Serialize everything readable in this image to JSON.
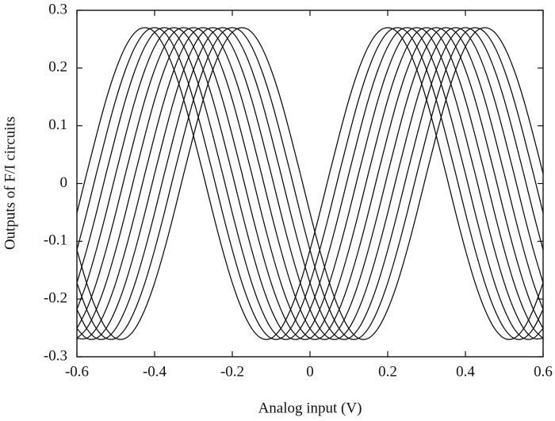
{
  "chart_data": {
    "type": "line",
    "xlabel": "Analog input (V)",
    "ylabel": "Outputs of F/I circuits",
    "color": "#111111",
    "xlim": [
      -0.6,
      0.6
    ],
    "ylim": [
      -0.3,
      0.3
    ],
    "xticks": [
      -0.6,
      -0.4,
      -0.2,
      0,
      0.2,
      0.4,
      0.6
    ],
    "yticks": [
      -0.3,
      -0.2,
      -0.1,
      0,
      0.1,
      0.2,
      0.3
    ],
    "x": [
      -0.6,
      -0.575,
      -0.55,
      -0.525,
      -0.5,
      -0.475,
      -0.45,
      -0.425,
      -0.4,
      -0.375,
      -0.35,
      -0.325,
      -0.3,
      -0.275,
      -0.25,
      -0.225,
      -0.2,
      -0.175,
      -0.15,
      -0.125,
      -0.1,
      -0.075,
      -0.05,
      -0.025,
      0,
      0.025,
      0.05,
      0.075,
      0.1,
      0.125,
      0.15,
      0.175,
      0.2,
      0.225,
      0.25,
      0.275,
      0.3,
      0.325,
      0.35,
      0.375,
      0.4,
      0.425,
      0.45,
      0.475,
      0.5,
      0.525,
      0.55,
      0.575,
      0.6
    ],
    "series": [
      {
        "values": [
          -0.051,
          0.017,
          0.083,
          0.145,
          0.197,
          0.237,
          0.262,
          0.27,
          0.262,
          0.237,
          0.197,
          0.145,
          0.083,
          0.017,
          -0.051,
          -0.115,
          -0.172,
          -0.218,
          -0.251,
          -0.268,
          -0.268,
          -0.251,
          -0.218,
          -0.172,
          -0.115,
          -0.051,
          0.017,
          0.083,
          0.145,
          0.197,
          0.237,
          0.262,
          0.27,
          0.262,
          0.237,
          0.197,
          0.145,
          0.083,
          0.017,
          -0.051,
          -0.115,
          -0.172,
          -0.218,
          -0.251,
          -0.268,
          -0.268,
          -0.251,
          -0.218,
          -0.172
        ]
      },
      {
        "values": [
          -0.115,
          -0.051,
          0.017,
          0.083,
          0.145,
          0.197,
          0.237,
          0.262,
          0.27,
          0.262,
          0.237,
          0.197,
          0.145,
          0.083,
          0.017,
          -0.051,
          -0.115,
          -0.172,
          -0.218,
          -0.251,
          -0.268,
          -0.268,
          -0.251,
          -0.218,
          -0.172,
          -0.115,
          -0.051,
          0.017,
          0.083,
          0.145,
          0.197,
          0.237,
          0.262,
          0.27,
          0.262,
          0.237,
          0.197,
          0.145,
          0.083,
          0.017,
          -0.051,
          -0.115,
          -0.172,
          -0.218,
          -0.251,
          -0.268,
          -0.268,
          -0.251,
          -0.218
        ]
      },
      {
        "values": [
          -0.172,
          -0.115,
          -0.051,
          0.017,
          0.083,
          0.145,
          0.197,
          0.237,
          0.262,
          0.27,
          0.262,
          0.237,
          0.197,
          0.145,
          0.083,
          0.017,
          -0.051,
          -0.115,
          -0.172,
          -0.218,
          -0.251,
          -0.268,
          -0.268,
          -0.251,
          -0.218,
          -0.172,
          -0.115,
          -0.051,
          0.017,
          0.083,
          0.145,
          0.197,
          0.237,
          0.262,
          0.27,
          0.262,
          0.237,
          0.197,
          0.145,
          0.083,
          0.017,
          -0.051,
          -0.115,
          -0.172,
          -0.218,
          -0.251,
          -0.268,
          -0.268,
          -0.251
        ]
      },
      {
        "values": [
          -0.218,
          -0.172,
          -0.115,
          -0.051,
          0.017,
          0.083,
          0.145,
          0.197,
          0.237,
          0.262,
          0.27,
          0.262,
          0.237,
          0.197,
          0.145,
          0.083,
          0.017,
          -0.051,
          -0.115,
          -0.172,
          -0.218,
          -0.251,
          -0.268,
          -0.268,
          -0.251,
          -0.218,
          -0.172,
          -0.115,
          -0.051,
          0.017,
          0.083,
          0.145,
          0.197,
          0.237,
          0.262,
          0.27,
          0.262,
          0.237,
          0.197,
          0.145,
          0.083,
          0.017,
          -0.051,
          -0.115,
          -0.172,
          -0.218,
          -0.251,
          -0.268,
          -0.268
        ]
      },
      {
        "values": [
          -0.251,
          -0.218,
          -0.172,
          -0.115,
          -0.051,
          0.017,
          0.083,
          0.145,
          0.197,
          0.237,
          0.262,
          0.27,
          0.262,
          0.237,
          0.197,
          0.145,
          0.083,
          0.017,
          -0.051,
          -0.115,
          -0.172,
          -0.218,
          -0.251,
          -0.268,
          -0.268,
          -0.251,
          -0.218,
          -0.172,
          -0.115,
          -0.051,
          0.017,
          0.083,
          0.145,
          0.197,
          0.237,
          0.262,
          0.27,
          0.262,
          0.237,
          0.197,
          0.145,
          0.083,
          0.017,
          -0.051,
          -0.115,
          -0.172,
          -0.218,
          -0.251,
          -0.268
        ]
      },
      {
        "values": [
          -0.268,
          -0.251,
          -0.218,
          -0.172,
          -0.115,
          -0.051,
          0.017,
          0.083,
          0.145,
          0.197,
          0.237,
          0.262,
          0.27,
          0.262,
          0.237,
          0.197,
          0.145,
          0.083,
          0.017,
          -0.051,
          -0.115,
          -0.172,
          -0.218,
          -0.251,
          -0.268,
          -0.268,
          -0.251,
          -0.218,
          -0.172,
          -0.115,
          -0.051,
          0.017,
          0.083,
          0.145,
          0.197,
          0.237,
          0.262,
          0.27,
          0.262,
          0.237,
          0.197,
          0.145,
          0.083,
          0.017,
          -0.051,
          -0.115,
          -0.172,
          -0.218,
          -0.251
        ]
      },
      {
        "values": [
          -0.268,
          -0.268,
          -0.251,
          -0.218,
          -0.172,
          -0.115,
          -0.051,
          0.017,
          0.083,
          0.145,
          0.197,
          0.237,
          0.262,
          0.27,
          0.262,
          0.237,
          0.197,
          0.145,
          0.083,
          0.017,
          -0.051,
          -0.115,
          -0.172,
          -0.218,
          -0.251,
          -0.268,
          -0.268,
          -0.251,
          -0.218,
          -0.172,
          -0.115,
          -0.051,
          0.017,
          0.083,
          0.145,
          0.197,
          0.237,
          0.262,
          0.27,
          0.262,
          0.237,
          0.197,
          0.145,
          0.083,
          0.017,
          -0.051,
          -0.115,
          -0.172,
          -0.218
        ]
      },
      {
        "values": [
          -0.251,
          -0.268,
          -0.268,
          -0.251,
          -0.218,
          -0.172,
          -0.115,
          -0.051,
          0.017,
          0.083,
          0.145,
          0.197,
          0.237,
          0.262,
          0.27,
          0.262,
          0.237,
          0.197,
          0.145,
          0.083,
          0.017,
          -0.051,
          -0.115,
          -0.172,
          -0.218,
          -0.251,
          -0.268,
          -0.268,
          -0.251,
          -0.218,
          -0.172,
          -0.115,
          -0.051,
          0.017,
          0.083,
          0.145,
          0.197,
          0.237,
          0.262,
          0.27,
          0.262,
          0.237,
          0.197,
          0.145,
          0.083,
          0.017,
          -0.051,
          -0.115,
          -0.172
        ]
      },
      {
        "values": [
          -0.218,
          -0.251,
          -0.268,
          -0.268,
          -0.251,
          -0.218,
          -0.172,
          -0.115,
          -0.051,
          0.017,
          0.083,
          0.145,
          0.197,
          0.237,
          0.262,
          0.27,
          0.262,
          0.237,
          0.197,
          0.145,
          0.083,
          0.017,
          -0.051,
          -0.115,
          -0.172,
          -0.218,
          -0.251,
          -0.268,
          -0.268,
          -0.251,
          -0.218,
          -0.172,
          -0.115,
          -0.051,
          0.017,
          0.083,
          0.145,
          0.197,
          0.237,
          0.262,
          0.27,
          0.262,
          0.237,
          0.197,
          0.145,
          0.083,
          0.017,
          -0.051,
          -0.115
        ]
      },
      {
        "values": [
          -0.172,
          -0.218,
          -0.251,
          -0.268,
          -0.268,
          -0.251,
          -0.218,
          -0.172,
          -0.115,
          -0.051,
          0.017,
          0.083,
          0.145,
          0.197,
          0.237,
          0.262,
          0.27,
          0.262,
          0.237,
          0.197,
          0.145,
          0.083,
          0.017,
          -0.051,
          -0.115,
          -0.172,
          -0.218,
          -0.251,
          -0.268,
          -0.268,
          -0.251,
          -0.218,
          -0.172,
          -0.115,
          -0.051,
          0.017,
          0.083,
          0.145,
          0.197,
          0.237,
          0.262,
          0.27,
          0.262,
          0.237,
          0.197,
          0.145,
          0.083,
          0.017,
          -0.051
        ]
      },
      {
        "values": [
          -0.115,
          -0.172,
          -0.218,
          -0.251,
          -0.268,
          -0.268,
          -0.251,
          -0.218,
          -0.172,
          -0.115,
          -0.051,
          0.017,
          0.083,
          0.145,
          0.197,
          0.237,
          0.262,
          0.27,
          0.262,
          0.237,
          0.197,
          0.145,
          0.083,
          0.017,
          -0.051,
          -0.115,
          -0.172,
          -0.218,
          -0.251,
          -0.268,
          -0.268,
          -0.251,
          -0.218,
          -0.172,
          -0.115,
          -0.051,
          0.017,
          0.083,
          0.145,
          0.197,
          0.237,
          0.262,
          0.27,
          0.262,
          0.237,
          0.197,
          0.145,
          0.083,
          0.017
        ]
      }
    ]
  }
}
